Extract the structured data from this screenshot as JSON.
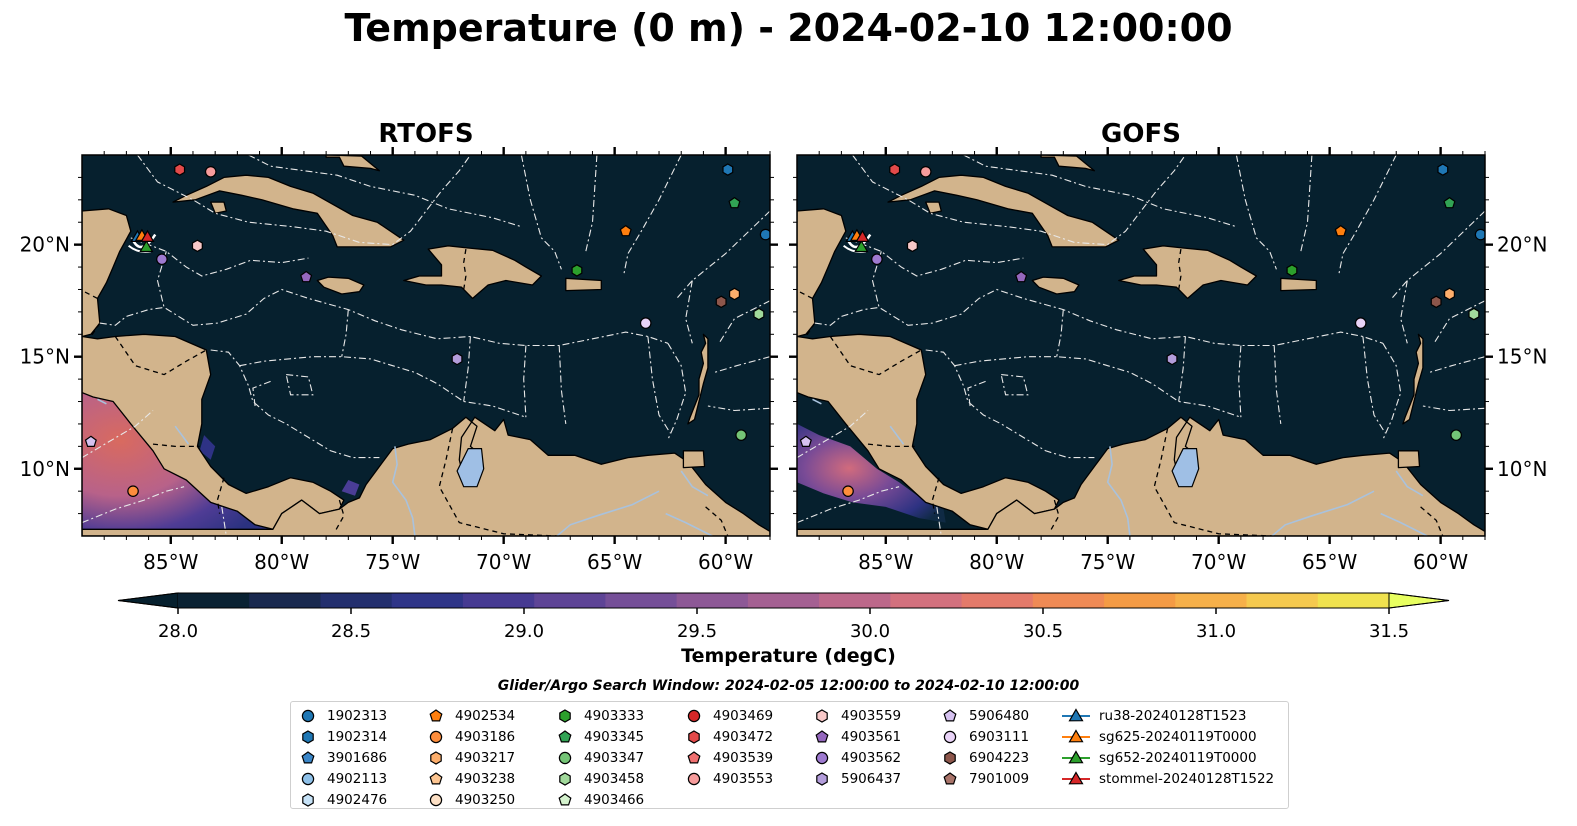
{
  "figure": {
    "title": "Temperature (0 m) - 2024-02-10 12:00:00",
    "panels": [
      {
        "title": "RTOFS",
        "hot_region": "rtofs"
      },
      {
        "title": "GOFS",
        "hot_region": "gofs"
      }
    ],
    "lon_ticks": [
      "85°W",
      "80°W",
      "75°W",
      "70°W",
      "65°W",
      "60°W"
    ],
    "lat_ticks": [
      "20°N",
      "15°N",
      "10°N"
    ],
    "colorbar": {
      "label": "Temperature (degC)",
      "ticks": [
        "28.0",
        "28.5",
        "29.0",
        "29.5",
        "30.0",
        "30.5",
        "31.0",
        "31.5"
      ],
      "colors": [
        "#0a2233",
        "#19294f",
        "#232f6e",
        "#2f3588",
        "#463a92",
        "#5e4496",
        "#754f98",
        "#8d5896",
        "#a46092",
        "#bc688a",
        "#d3717e",
        "#e47a6a",
        "#ef8a55",
        "#f49b45",
        "#f6b04a",
        "#f5c94f",
        "#f0e24f"
      ],
      "under_color": "#06202e",
      "over_color": "#e8ff60"
    },
    "search_window": "Glider/Argo Search Window: 2024-02-05 12:00:00 to 2024-02-10 12:00:00",
    "colors": {
      "ocean": "#06202e",
      "land": "#d2b48c",
      "lake": "#9fbfe5"
    }
  },
  "legend": [
    [
      {
        "label": "1902313",
        "shape": "circle",
        "color": "#1f77b4"
      },
      {
        "label": "1902314",
        "shape": "hexagon",
        "color": "#1f77b4"
      },
      {
        "label": "3901686",
        "shape": "pentagon",
        "color": "#3a86c8"
      },
      {
        "label": "4902113",
        "shape": "circle",
        "color": "#8ec0e8"
      },
      {
        "label": "4902476",
        "shape": "hexagon",
        "color": "#c6e2f7"
      }
    ],
    [
      {
        "label": "4902534",
        "shape": "pentagon",
        "color": "#ff7f0e"
      },
      {
        "label": "4903186",
        "shape": "circle",
        "color": "#fd8d3c"
      },
      {
        "label": "4903217",
        "shape": "hexagon",
        "color": "#fdae6b"
      },
      {
        "label": "4903238",
        "shape": "pentagon",
        "color": "#fdc591"
      },
      {
        "label": "4903250",
        "shape": "circle",
        "color": "#fde0c5"
      }
    ],
    [
      {
        "label": "4903333",
        "shape": "hexagon",
        "color": "#2ca02c"
      },
      {
        "label": "4903345",
        "shape": "pentagon",
        "color": "#31a354"
      },
      {
        "label": "4903347",
        "shape": "circle",
        "color": "#74c476"
      },
      {
        "label": "4903458",
        "shape": "hexagon",
        "color": "#a1d99b"
      },
      {
        "label": "4903466",
        "shape": "pentagon",
        "color": "#d4f2cd"
      }
    ],
    [
      {
        "label": "4903469",
        "shape": "circle",
        "color": "#d62728"
      },
      {
        "label": "4903472",
        "shape": "hexagon",
        "color": "#e34a4a"
      },
      {
        "label": "4903539",
        "shape": "pentagon",
        "color": "#f07070"
      },
      {
        "label": "4903553",
        "shape": "circle",
        "color": "#f79c9c"
      }
    ],
    [
      {
        "label": "4903559",
        "shape": "hexagon",
        "color": "#f8c8c8"
      },
      {
        "label": "4903561",
        "shape": "pentagon",
        "color": "#9467bd"
      },
      {
        "label": "4903562",
        "shape": "circle",
        "color": "#9e7ad0"
      },
      {
        "label": "5906437",
        "shape": "hexagon",
        "color": "#b39ddb"
      }
    ],
    [
      {
        "label": "5906480",
        "shape": "pentagon",
        "color": "#d6c2f0"
      },
      {
        "label": "6903111",
        "shape": "circle",
        "color": "#e9d3f7"
      },
      {
        "label": "6904223",
        "shape": "hexagon",
        "color": "#8c564b"
      },
      {
        "label": "7901009",
        "shape": "pentagon",
        "color": "#a9746a"
      }
    ],
    [
      {
        "label": "ru38-20240128T1523",
        "shape": "triangle-line",
        "color": "#1f77b4"
      },
      {
        "label": "sg625-20240119T0000",
        "shape": "triangle-line",
        "color": "#ff7f0e"
      },
      {
        "label": "sg652-20240119T0000",
        "shape": "triangle-line",
        "color": "#2ca02c"
      },
      {
        "label": "stommel-20240128T1522",
        "shape": "triangle-line",
        "color": "#d62728"
      }
    ]
  ],
  "float_positions": [
    {
      "id": "1902313",
      "lon": -58.2,
      "lat": 20.45
    },
    {
      "id": "1902314",
      "lon": -59.9,
      "lat": 23.35
    },
    {
      "id": "4902534",
      "lon": -64.5,
      "lat": 20.6
    },
    {
      "id": "4903186",
      "lon": -86.7,
      "lat": 9.0
    },
    {
      "id": "4903217",
      "lon": -59.6,
      "lat": 17.8
    },
    {
      "id": "4903333",
      "lon": -66.7,
      "lat": 18.85
    },
    {
      "id": "4903345",
      "lon": -59.6,
      "lat": 21.85
    },
    {
      "id": "4903347",
      "lon": -59.3,
      "lat": 11.5
    },
    {
      "id": "4903458",
      "lon": -58.5,
      "lat": 16.9
    },
    {
      "id": "4903472",
      "lon": -84.6,
      "lat": 23.35
    },
    {
      "id": "4903553",
      "lon": -83.2,
      "lat": 23.25
    },
    {
      "id": "4903559",
      "lon": -83.8,
      "lat": 19.95
    },
    {
      "id": "4903561",
      "lon": -78.9,
      "lat": 18.55
    },
    {
      "id": "4903562",
      "lon": -85.4,
      "lat": 19.35
    },
    {
      "id": "5906437",
      "lon": -72.1,
      "lat": 14.9
    },
    {
      "id": "5906480",
      "lon": -88.6,
      "lat": 11.2
    },
    {
      "id": "6903111",
      "lon": -63.6,
      "lat": 16.5
    },
    {
      "id": "6904223",
      "lon": -60.2,
      "lat": 17.45
    }
  ],
  "glider_positions": [
    {
      "id": "sg652-20240119T0000",
      "lon": -86.1,
      "lat": 19.85
    },
    {
      "id": "ru38-20240128T1523",
      "lon": -86.5,
      "lat": 20.3
    },
    {
      "id": "sg625-20240119T0000",
      "lon": -86.3,
      "lat": 20.35
    },
    {
      "id": "stommel-20240128T1522",
      "lon": -86.05,
      "lat": 20.3
    }
  ]
}
